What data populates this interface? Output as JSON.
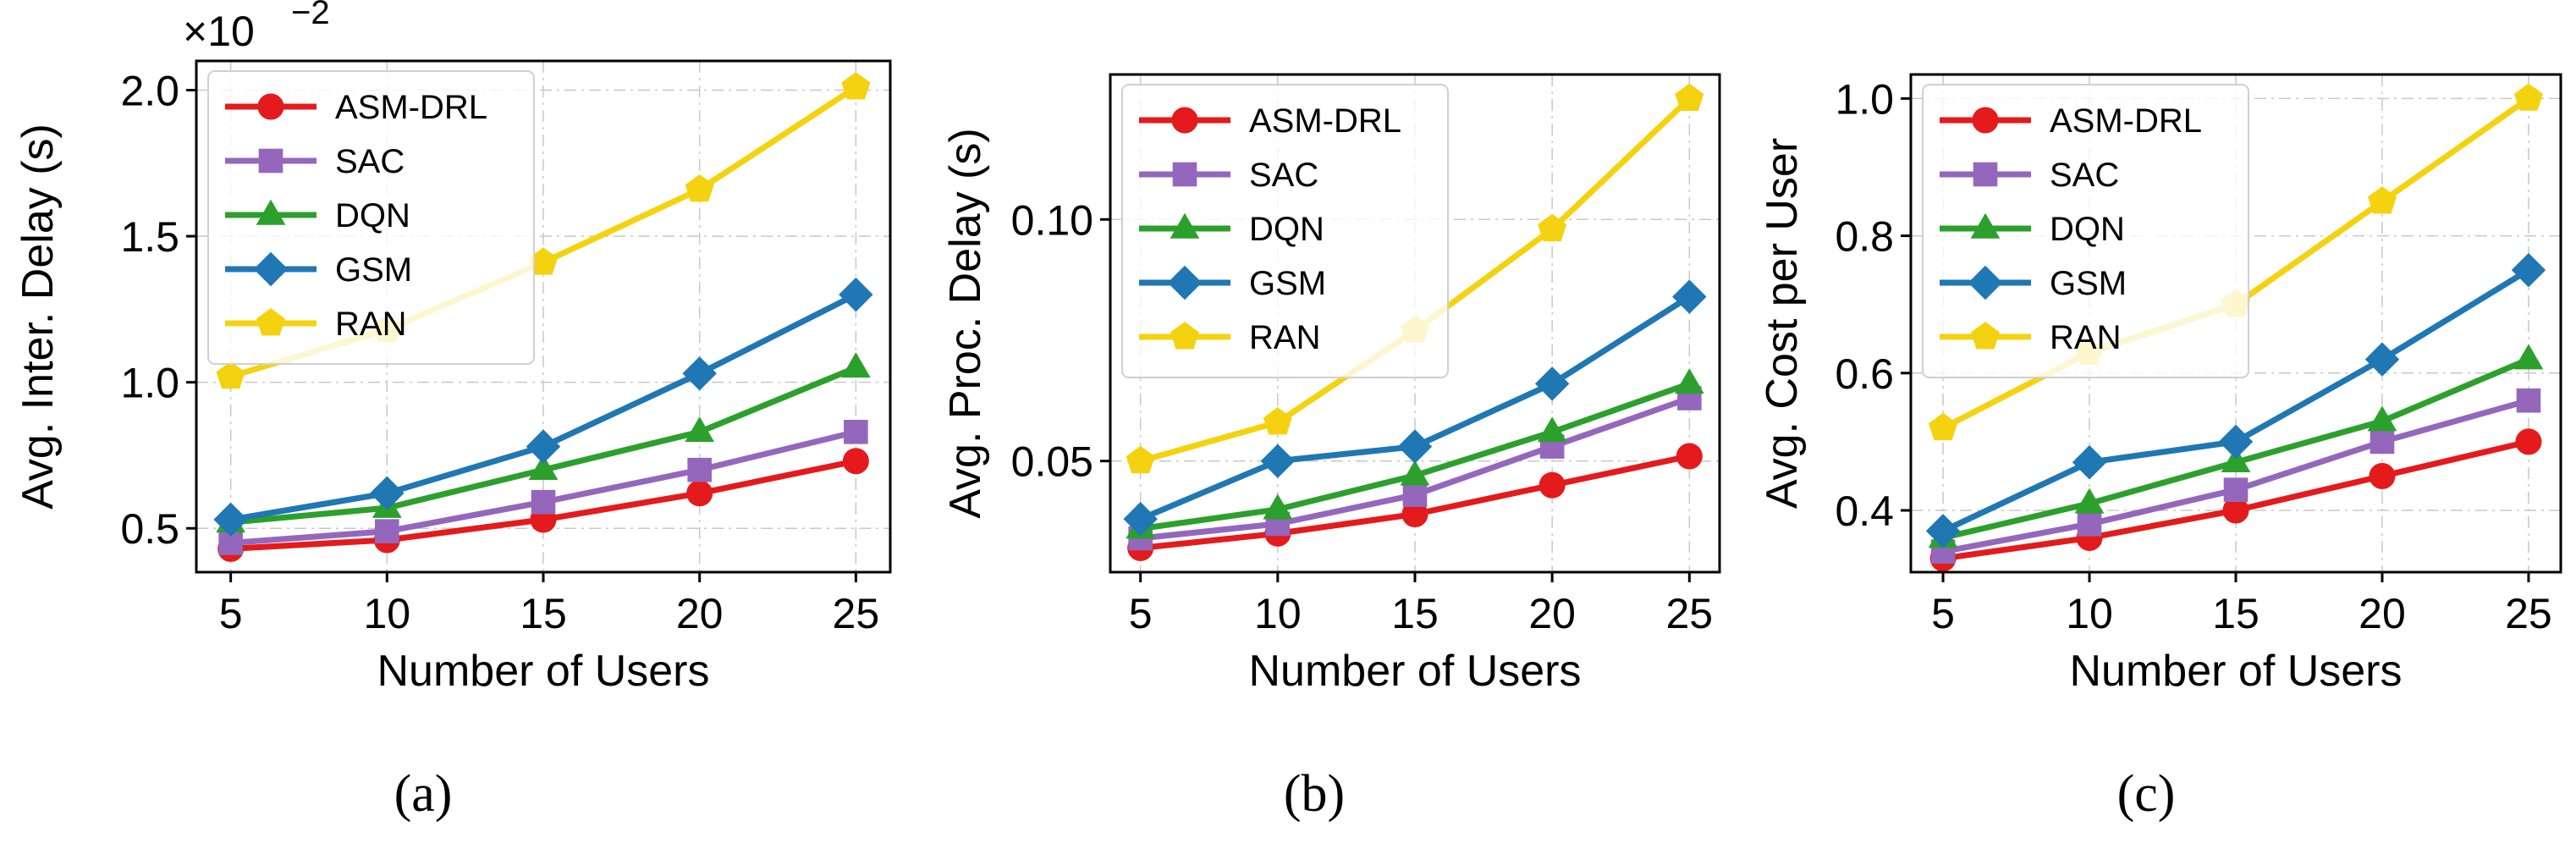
{
  "chart_data": [
    {
      "type": "line",
      "panel_label": "(a)",
      "title": "",
      "xlabel": "Number of Users",
      "ylabel": "Avg. Inter. Delay (s)",
      "y_multiplier": {
        "base": "×10",
        "exponent": "−2"
      },
      "x": [
        5,
        10,
        15,
        20,
        25
      ],
      "xticks": [
        "5",
        "10",
        "15",
        "20",
        "25"
      ],
      "ytick_values": [
        0.5,
        1.0,
        1.5,
        2.0
      ],
      "yticks": [
        "0.5",
        "1.0",
        "1.5",
        "2.0"
      ],
      "xlim": [
        3.9,
        26.1
      ],
      "ylim": [
        0.35,
        2.1
      ],
      "grid": true,
      "legend_position": "top-left",
      "series": [
        {
          "name": "ASM-DRL",
          "color": "#e41a1c",
          "marker": "circle",
          "values": [
            0.43,
            0.46,
            0.53,
            0.62,
            0.73
          ]
        },
        {
          "name": "SAC",
          "color": "#9467bd",
          "marker": "square",
          "values": [
            0.45,
            0.49,
            0.59,
            0.7,
            0.83
          ]
        },
        {
          "name": "DQN",
          "color": "#2ca02c",
          "marker": "triangle",
          "values": [
            0.52,
            0.57,
            0.7,
            0.83,
            1.05
          ]
        },
        {
          "name": "GSM",
          "color": "#1f77b4",
          "marker": "diamond",
          "values": [
            0.53,
            0.62,
            0.78,
            1.03,
            1.3
          ]
        },
        {
          "name": "RAN",
          "color": "#f5d20f",
          "marker": "pentagon",
          "values": [
            1.02,
            1.18,
            1.41,
            1.66,
            2.01
          ]
        }
      ]
    },
    {
      "type": "line",
      "panel_label": "(b)",
      "title": "",
      "xlabel": "Number of Users",
      "ylabel": "Avg. Proc. Delay (s)",
      "x": [
        5,
        10,
        15,
        20,
        25
      ],
      "xticks": [
        "5",
        "10",
        "15",
        "20",
        "25"
      ],
      "ytick_values": [
        0.05,
        0.1
      ],
      "yticks": [
        "0.05",
        "0.10"
      ],
      "xlim": [
        3.9,
        26.1
      ],
      "ylim": [
        0.027,
        0.13
      ],
      "grid": true,
      "legend_position": "top-left",
      "series": [
        {
          "name": "ASM-DRL",
          "color": "#e41a1c",
          "marker": "circle",
          "values": [
            0.032,
            0.035,
            0.039,
            0.045,
            0.051
          ]
        },
        {
          "name": "SAC",
          "color": "#9467bd",
          "marker": "square",
          "values": [
            0.034,
            0.037,
            0.043,
            0.053,
            0.063
          ]
        },
        {
          "name": "DQN",
          "color": "#2ca02c",
          "marker": "triangle",
          "values": [
            0.036,
            0.04,
            0.047,
            0.056,
            0.066
          ]
        },
        {
          "name": "GSM",
          "color": "#1f77b4",
          "marker": "diamond",
          "values": [
            0.038,
            0.05,
            0.053,
            0.066,
            0.084
          ]
        },
        {
          "name": "RAN",
          "color": "#f5d20f",
          "marker": "pentagon",
          "values": [
            0.05,
            0.058,
            0.077,
            0.098,
            0.125
          ]
        }
      ]
    },
    {
      "type": "line",
      "panel_label": "(c)",
      "title": "",
      "xlabel": "Number of Users",
      "ylabel": "Avg. Cost per User",
      "x": [
        5,
        10,
        15,
        20,
        25
      ],
      "xticks": [
        "5",
        "10",
        "15",
        "20",
        "25"
      ],
      "ytick_values": [
        0.4,
        0.6,
        0.8,
        1.0
      ],
      "yticks": [
        "0.4",
        "0.6",
        "0.8",
        "1.0"
      ],
      "xlim": [
        3.9,
        26.1
      ],
      "ylim": [
        0.31,
        1.035
      ],
      "grid": true,
      "legend_position": "top-left",
      "series": [
        {
          "name": "ASM-DRL",
          "color": "#e41a1c",
          "marker": "circle",
          "values": [
            0.33,
            0.36,
            0.4,
            0.45,
            0.5
          ]
        },
        {
          "name": "SAC",
          "color": "#9467bd",
          "marker": "square",
          "values": [
            0.34,
            0.38,
            0.43,
            0.5,
            0.56
          ]
        },
        {
          "name": "DQN",
          "color": "#2ca02c",
          "marker": "triangle",
          "values": [
            0.36,
            0.41,
            0.47,
            0.53,
            0.62
          ]
        },
        {
          "name": "GSM",
          "color": "#1f77b4",
          "marker": "diamond",
          "values": [
            0.37,
            0.47,
            0.5,
            0.62,
            0.75
          ]
        },
        {
          "name": "RAN",
          "color": "#f5d20f",
          "marker": "pentagon",
          "values": [
            0.52,
            0.63,
            0.7,
            0.85,
            1.0
          ]
        }
      ]
    }
  ]
}
